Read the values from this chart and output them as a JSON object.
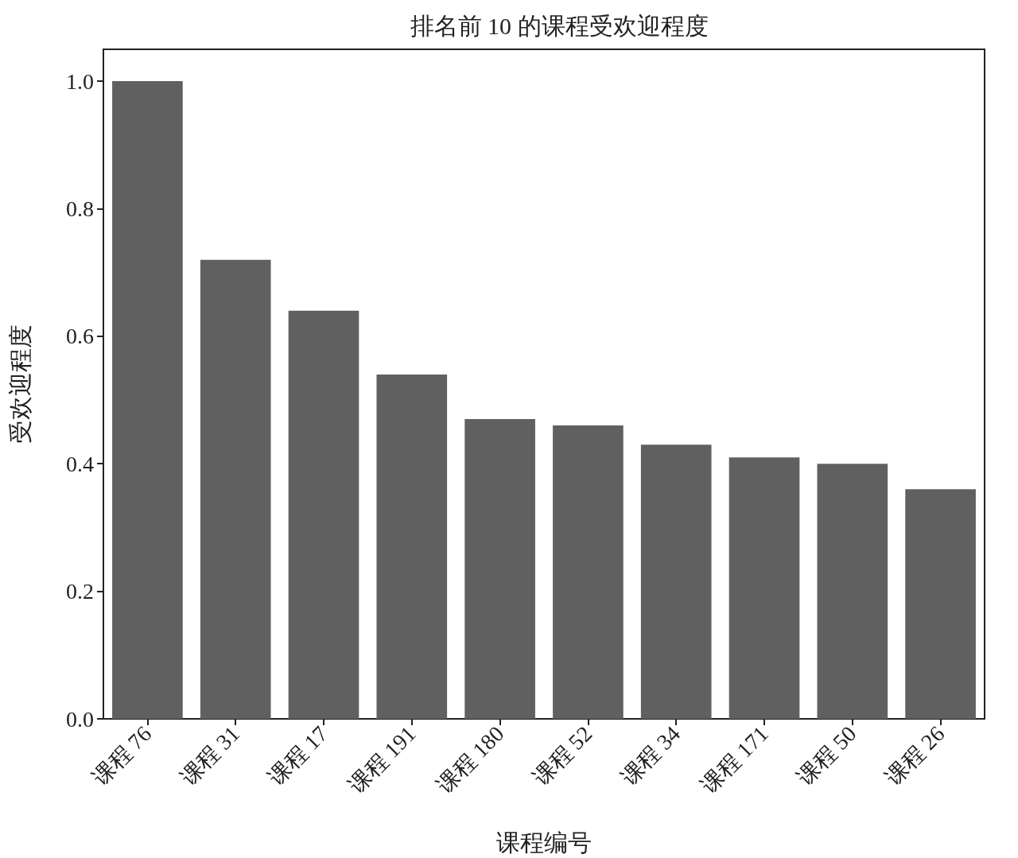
{
  "chart_data": {
    "type": "bar",
    "title": "排名前 10 的课程受欢迎程度",
    "xlabel": "课程编号",
    "ylabel": "受欢迎程度",
    "categories": [
      "课程 76",
      "课程 31",
      "课程 17",
      "课程 191",
      "课程 180",
      "课程 52",
      "课程 34",
      "课程 171",
      "课程 50",
      "课程 26"
    ],
    "values": [
      1.0,
      0.72,
      0.64,
      0.54,
      0.47,
      0.46,
      0.43,
      0.41,
      0.4,
      0.36
    ],
    "color": "#616061",
    "ylim": [
      0,
      1.05
    ],
    "yticks": [
      {
        "value": 0,
        "label": "0.0"
      },
      {
        "value": 0.2,
        "label": "0.2"
      },
      {
        "value": 0.4,
        "label": "0.4"
      },
      {
        "value": 0.6,
        "label": "0.6"
      },
      {
        "value": 0.8,
        "label": "0.8"
      },
      {
        "value": 1.0,
        "label": "1.0"
      }
    ],
    "grid": false
  }
}
